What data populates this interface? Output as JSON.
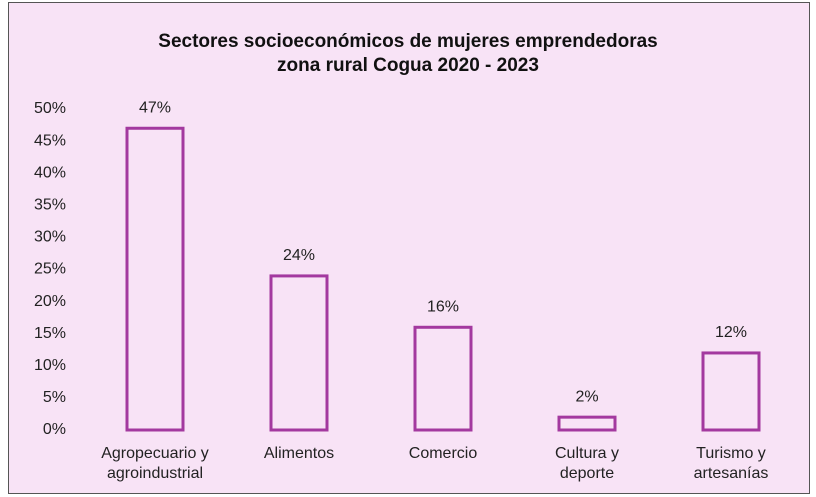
{
  "chart_data": {
    "type": "bar",
    "title": "Sectores socioeconómicos de mujeres emprendedoras zona rural Cogua 2020 - 2023",
    "categories": [
      "Agropecuario y agroindustrial",
      "Alimentos",
      "Comercio",
      "Cultura y deporte",
      "Turismo y artesanías"
    ],
    "values": [
      47,
      24,
      16,
      2,
      12
    ],
    "value_labels": [
      "47%",
      "24%",
      "16%",
      "2%",
      "12%"
    ],
    "color": "#a3399f",
    "ylim": [
      0,
      50
    ],
    "yticks": [
      {
        "value": 0,
        "label": "0%"
      },
      {
        "value": 5,
        "label": "5%"
      },
      {
        "value": 10,
        "label": "10%"
      },
      {
        "value": 15,
        "label": "15%"
      },
      {
        "value": 20,
        "label": "20%"
      },
      {
        "value": 25,
        "label": "25%"
      },
      {
        "value": 30,
        "label": "30%"
      },
      {
        "value": 35,
        "label": "35%"
      },
      {
        "value": 40,
        "label": "40%"
      },
      {
        "value": 45,
        "label": "45%"
      },
      {
        "value": 50,
        "label": "50%"
      }
    ],
    "grid": false
  }
}
